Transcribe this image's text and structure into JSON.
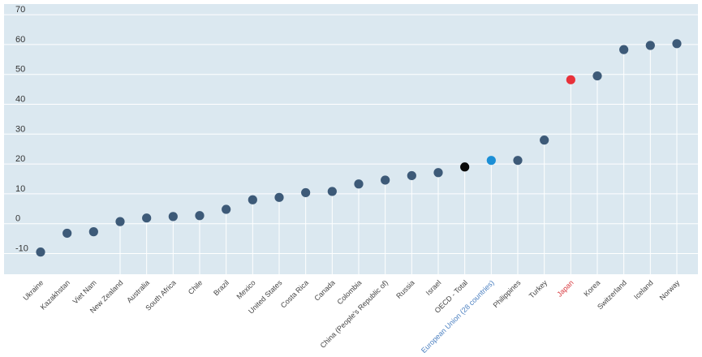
{
  "chart_data": {
    "type": "scatter",
    "title": "",
    "xlabel": "",
    "ylabel": "",
    "ylim": [
      -15,
      72
    ],
    "yticks": [
      -10,
      0,
      10,
      20,
      30,
      40,
      50,
      60,
      70
    ],
    "grid": true,
    "categories": [
      "Ukraine",
      "Kazakhstan",
      "Viet Nam",
      "New Zealand",
      "Australia",
      "South Africa",
      "Chile",
      "Brazil",
      "Mexico",
      "United States",
      "Costa Rica",
      "Canada",
      "Colombia",
      "China (People's Republic of)",
      "Russia",
      "Israel",
      "OECD - Total",
      "European Union (28 countries)",
      "Philippines",
      "Turkey",
      "Japan",
      "Korea",
      "Switzerland",
      "Iceland",
      "Norway"
    ],
    "values": [
      -9.5,
      -3.2,
      -2.7,
      0.7,
      1.9,
      2.4,
      2.7,
      4.8,
      8.0,
      8.8,
      10.4,
      10.8,
      13.3,
      14.6,
      16.1,
      17.1,
      19.0,
      21.2,
      21.2,
      28.0,
      48.2,
      49.5,
      58.3,
      59.7,
      60.3
    ],
    "highlights": {
      "OECD - Total": "#0a0a0a",
      "European Union (28 countries)": "#1b8fd6",
      "Japan": "#e8313a"
    },
    "highlight_label_colors": {
      "European Union (28 countries)": "#4a7fc0",
      "Japan": "#d8393f"
    },
    "colors": {
      "default_point": "#3d5a78",
      "background": "#dbe8f0",
      "grid": "#ffffff",
      "stem": "#ffffff",
      "tick_label": "#333333",
      "category_label": "#444444"
    }
  }
}
